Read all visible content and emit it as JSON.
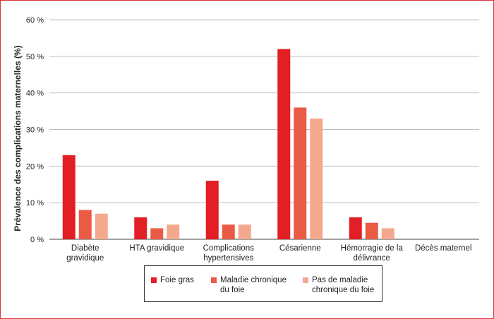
{
  "chart_data": {
    "type": "bar",
    "title": "",
    "xlabel": "",
    "ylabel": "Prévalence des complications maternelles (%)",
    "ylim": [
      0,
      60
    ],
    "yticks": [
      0,
      10,
      20,
      30,
      40,
      50,
      60
    ],
    "ytick_labels": [
      "0 %",
      "10 %",
      "20 %",
      "30 %",
      "40 %",
      "50 %",
      "60 %"
    ],
    "grid": true,
    "legend_position": "bottom",
    "categories": [
      [
        "Diabète",
        "gravidique"
      ],
      [
        "HTA gravidique"
      ],
      [
        "Complications",
        "hypertensives"
      ],
      [
        "Césarienne"
      ],
      [
        "Hémorragie de la",
        "délivrance"
      ],
      [
        "Décès maternel"
      ]
    ],
    "series": [
      {
        "name": "Foie gras",
        "legend_lines": [
          "Foie gras"
        ],
        "color": "#e31f26",
        "values": [
          23,
          6,
          16,
          52,
          6,
          0
        ]
      },
      {
        "name": "Maladie chronique du foie",
        "legend_lines": [
          "Maladie chronique",
          "du foie"
        ],
        "color": "#ea5b45",
        "values": [
          8,
          3,
          4,
          36,
          4.5,
          0
        ]
      },
      {
        "name": "Pas de maladie chronique du foie",
        "legend_lines": [
          "Pas de maladie",
          "chronique du foie"
        ],
        "color": "#f4a98e",
        "values": [
          7,
          4,
          4,
          33,
          3,
          0
        ]
      }
    ]
  }
}
